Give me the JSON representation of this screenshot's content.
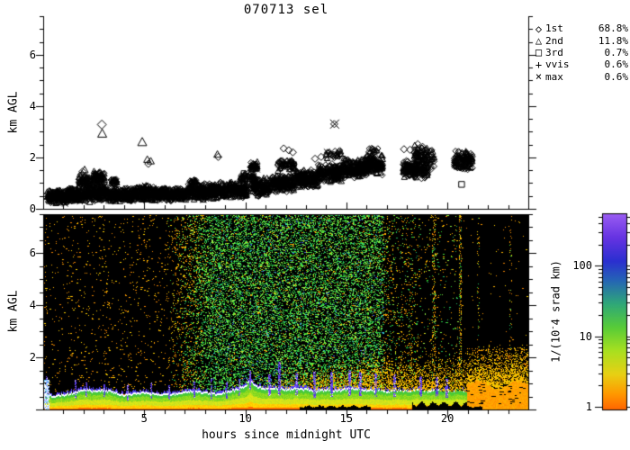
{
  "title": "070713 sel",
  "axes": {
    "top_plot": {
      "ylabel": "km AGL",
      "y_tick_labels": [
        0,
        2,
        4,
        6
      ],
      "y_range": [
        0,
        7.5
      ],
      "x_range": [
        0,
        24
      ]
    },
    "bottom_plot": {
      "ylabel": "km AGL",
      "xlabel": "hours since midnight UTC",
      "y_tick_labels": [
        2,
        4,
        6
      ],
      "x_tick_labels": [
        5,
        10,
        15,
        20
      ],
      "y_range": [
        0,
        7.5
      ],
      "x_range": [
        0,
        24
      ]
    }
  },
  "legend": [
    {
      "icon": "diamond",
      "symbol": "◇",
      "label": "1st",
      "pct": "68.8%"
    },
    {
      "icon": "triangle",
      "symbol": "△",
      "label": "2nd",
      "pct": "11.8%"
    },
    {
      "icon": "square",
      "symbol": "□",
      "label": "3rd",
      "pct": "0.7%"
    },
    {
      "icon": "plus",
      "symbol": "+",
      "label": "vvis",
      "pct": "0.6%"
    },
    {
      "icon": "x",
      "symbol": "×",
      "label": "max",
      "pct": "0.6%"
    }
  ],
  "colorbar": {
    "label_prefix": "1/(10",
    "label_sup": "-",
    "label_suffix": "4 srad km)",
    "tick_labels": [
      1,
      10,
      100
    ],
    "scale": "log",
    "gradient": [
      [
        0.0,
        "#ff6600"
      ],
      [
        0.08,
        "#ff9900"
      ],
      [
        0.18,
        "#e8d014"
      ],
      [
        0.3,
        "#a8e020"
      ],
      [
        0.42,
        "#58cc38"
      ],
      [
        0.54,
        "#2fa878"
      ],
      [
        0.66,
        "#2565b5"
      ],
      [
        0.76,
        "#2b2fd0"
      ],
      [
        0.88,
        "#6633e2"
      ],
      [
        1.0,
        "#9a5cf2"
      ]
    ]
  },
  "chart_data": [
    {
      "type": "scatter",
      "title": "070713 sel",
      "ylabel": "km AGL",
      "xlim": [
        0,
        24
      ],
      "ylim": [
        0,
        7.5
      ],
      "legend_entries": [
        "1st 68.8%",
        "2nd 11.8%",
        "3rd 0.7%",
        "vvis 0.6%",
        "max 0.6%"
      ],
      "band_clusters": [
        [
          0.2,
          1.2,
          0.18,
          0.75,
          220
        ],
        [
          1.2,
          2.0,
          0.25,
          0.85,
          180
        ],
        [
          1.75,
          2.35,
          0.8,
          1.4,
          70
        ],
        [
          2.0,
          3.3,
          0.25,
          0.95,
          260
        ],
        [
          2.45,
          3.05,
          0.9,
          1.5,
          80
        ],
        [
          3.3,
          4.6,
          0.25,
          0.85,
          260
        ],
        [
          3.35,
          3.65,
          0.9,
          1.2,
          30
        ],
        [
          4.6,
          5.6,
          0.28,
          0.95,
          200
        ],
        [
          5.6,
          7.1,
          0.28,
          0.85,
          300
        ],
        [
          7.1,
          8.1,
          0.33,
          1.0,
          200
        ],
        [
          7.25,
          7.6,
          0.95,
          1.15,
          25
        ],
        [
          8.1,
          9.15,
          0.35,
          1.05,
          200
        ],
        [
          9.15,
          10.1,
          0.4,
          1.1,
          190
        ],
        [
          9.75,
          10.45,
          1.0,
          1.45,
          55
        ],
        [
          10.3,
          11.2,
          0.45,
          1.25,
          170
        ],
        [
          10.25,
          10.6,
          1.45,
          1.85,
          45
        ],
        [
          11.2,
          12.4,
          0.6,
          1.35,
          220
        ],
        [
          11.6,
          12.45,
          1.45,
          1.95,
          70
        ],
        [
          12.4,
          13.6,
          0.8,
          1.55,
          220
        ],
        [
          13.6,
          14.8,
          1.0,
          1.8,
          220
        ],
        [
          14.0,
          14.75,
          1.9,
          2.3,
          30
        ],
        [
          14.8,
          16.0,
          1.15,
          2.0,
          230
        ],
        [
          15.9,
          16.8,
          1.3,
          2.15,
          190
        ],
        [
          16.1,
          16.6,
          2.15,
          2.45,
          14
        ],
        [
          17.8,
          19.05,
          1.15,
          1.95,
          200
        ],
        [
          18.35,
          19.35,
          1.5,
          2.55,
          110
        ],
        [
          20.3,
          21.25,
          1.45,
          2.3,
          140
        ]
      ],
      "outliers": [
        [
          2.9,
          3.28,
          "diamond",
          5
        ],
        [
          2.92,
          2.93,
          "triangle",
          5
        ],
        [
          4.9,
          2.6,
          "triangle",
          5
        ],
        [
          5.15,
          1.92,
          "triangle",
          4
        ],
        [
          5.32,
          1.86,
          "triangle",
          4
        ],
        [
          5.2,
          1.75,
          "diamond",
          4
        ],
        [
          3.5,
          1.12,
          "triangle",
          4
        ],
        [
          2.05,
          1.52,
          "triangle",
          4
        ],
        [
          1.95,
          1.45,
          "diamond",
          4
        ],
        [
          8.62,
          2.12,
          "triangle",
          4
        ],
        [
          8.66,
          2.02,
          "diamond",
          4
        ],
        [
          8.8,
          0.97,
          "square",
          4
        ],
        [
          10.4,
          1.7,
          "triangle",
          4
        ],
        [
          14.42,
          3.3,
          "x",
          5
        ],
        [
          14.4,
          3.3,
          "diamond",
          4
        ],
        [
          11.9,
          2.35,
          "diamond",
          4
        ],
        [
          12.15,
          2.28,
          "diamond",
          4
        ],
        [
          12.35,
          2.2,
          "diamond",
          4
        ],
        [
          13.45,
          1.95,
          "diamond",
          4
        ],
        [
          13.75,
          2.02,
          "diamond",
          4
        ],
        [
          16.15,
          1.62,
          "diamond",
          4
        ],
        [
          16.45,
          1.7,
          "diamond",
          4
        ],
        [
          17.85,
          2.32,
          "diamond",
          4
        ],
        [
          18.15,
          2.3,
          "diamond",
          4
        ],
        [
          20.7,
          0.95,
          "square",
          4
        ],
        [
          21.0,
          1.55,
          "diamond",
          4
        ]
      ],
      "symbol_mix": {
        "diamond": 0.62,
        "triangle": 0.3,
        "x": 0.04,
        "plus": 0.03,
        "square": 0.01
      }
    },
    {
      "type": "heatmap",
      "ylabel": "km AGL",
      "xlabel": "hours since midnight UTC",
      "xlim": [
        0,
        24
      ],
      "ylim": [
        0,
        7.5
      ],
      "value_ticks": [
        1,
        10,
        100
      ],
      "boundary_layer": {
        "t": [
          0,
          0.5,
          1,
          1.5,
          2,
          2.5,
          3,
          3.5,
          4,
          4.5,
          5,
          5.5,
          6,
          6.5,
          7,
          7.5,
          8,
          8.5,
          9,
          9.5,
          10,
          10.2,
          10.5,
          11,
          11.5,
          12,
          12.5,
          13,
          13.5,
          14,
          14.5,
          15,
          15.5,
          16,
          16.5,
          17,
          17.5,
          18,
          18.5,
          19,
          19.5,
          20,
          20.5,
          21,
          22,
          23,
          24
        ],
        "h": [
          0.55,
          0.5,
          0.55,
          0.62,
          0.75,
          0.7,
          0.75,
          0.62,
          0.55,
          0.6,
          0.65,
          0.6,
          0.55,
          0.6,
          0.65,
          0.7,
          0.62,
          0.6,
          0.65,
          0.75,
          0.9,
          1.15,
          0.9,
          0.78,
          0.82,
          0.75,
          0.8,
          0.75,
          0.7,
          0.75,
          0.72,
          0.76,
          0.8,
          0.72,
          0.75,
          0.7,
          0.74,
          0.7,
          0.74,
          0.7,
          0.73,
          0.7,
          0.73,
          0.7,
          0.73,
          0.7,
          0.74
        ]
      },
      "haze_top": {
        "t": [
          11.3,
          12,
          13,
          14,
          15,
          16,
          17,
          18,
          19,
          20,
          21,
          22,
          23,
          24
        ],
        "h": [
          1.0,
          1.25,
          1.45,
          1.5,
          1.65,
          1.8,
          1.9,
          1.8,
          2.0,
          1.85,
          2.0,
          2.3,
          2.2,
          2.4
        ]
      },
      "plumes": [
        [
          0.15,
          1.3
        ],
        [
          1.55,
          1.15
        ],
        [
          2.1,
          1.05
        ],
        [
          3.0,
          1.0
        ],
        [
          4.15,
          1.0
        ],
        [
          5.3,
          1.05
        ],
        [
          6.2,
          0.95
        ],
        [
          7.45,
          1.1
        ],
        [
          8.3,
          1.25
        ],
        [
          9.05,
          1.1
        ],
        [
          9.65,
          1.2
        ],
        [
          10.2,
          1.5
        ],
        [
          11.15,
          1.35
        ],
        [
          11.6,
          1.85
        ],
        [
          12.45,
          1.4
        ],
        [
          13.35,
          1.5
        ],
        [
          14.2,
          1.45
        ],
        [
          15.1,
          1.5
        ],
        [
          15.65,
          1.45
        ],
        [
          16.4,
          1.4
        ],
        [
          17.3,
          1.35
        ],
        [
          18.6,
          1.3
        ],
        [
          19.4,
          1.25
        ],
        [
          19.9,
          1.2
        ]
      ],
      "speckle_regions": [
        {
          "t0": 0,
          "t1": 6.0,
          "p": 0.03,
          "mix": "orange"
        },
        {
          "t0": 6.0,
          "t1": 8.3,
          "p": 0.03,
          "p_end": 0.32,
          "mix": "ramp"
        },
        {
          "t0": 8.3,
          "t1": 16.8,
          "p": 0.32,
          "mix": "green"
        },
        {
          "t0": 16.8,
          "t1": 18.4,
          "p": 0.1,
          "mix": "orange_green"
        },
        {
          "t0": 18.4,
          "t1": 20.5,
          "p": 0.035,
          "mix": "orange_green"
        },
        {
          "t0": 20.5,
          "t1": 24,
          "p": 0.005,
          "mix": "orange"
        }
      ],
      "stripes": [
        [
          19.3,
          0.16,
          0.25
        ],
        [
          20.62,
          0.12,
          0.3
        ],
        [
          21.5,
          0.1,
          0.12
        ],
        [
          23.1,
          0.1,
          0.1
        ]
      ],
      "notches": [
        [
          12.7,
          16.2,
          0.13
        ],
        [
          18.25,
          20.95,
          0.27
        ],
        [
          20.95,
          21.7,
          0.1
        ]
      ],
      "orange_block": {
        "t0": 20.95,
        "t1": 24,
        "top": 1.15,
        "speckle_top": 2.4
      }
    }
  ]
}
